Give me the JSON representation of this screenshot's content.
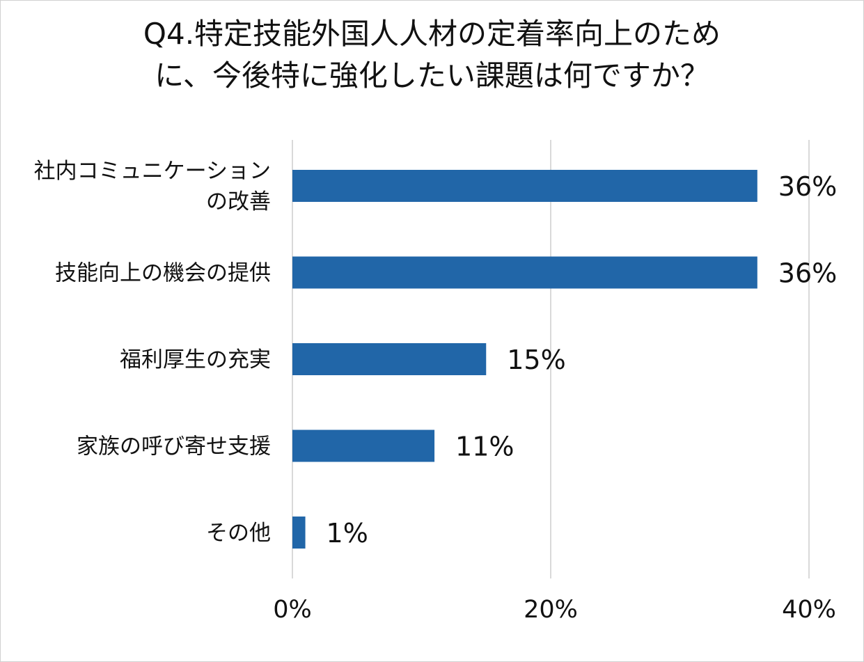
{
  "chart_data": {
    "type": "bar",
    "orientation": "horizontal",
    "title": "Q4.特定技能外国人人材の定着率向上のため\nに、今後特に強化したい課題は何ですか？",
    "categories": [
      "社内コミュニケーション\nの改善",
      "技能向上の機会の提供",
      "福利厚生の充実",
      "家族の呼び寄せ支援",
      "その他"
    ],
    "values": [
      36,
      36,
      15,
      11,
      1
    ],
    "value_labels": [
      "36%",
      "36%",
      "15%",
      "11%",
      "1%"
    ],
    "xlim": [
      0,
      40
    ],
    "xticks": [
      0,
      20,
      40
    ],
    "xtick_labels": [
      "0%",
      "20%",
      "40%"
    ],
    "grid": "vertical",
    "legend": "none",
    "bar_color": "#2166a8",
    "grid_color": "#d9d9d9"
  }
}
